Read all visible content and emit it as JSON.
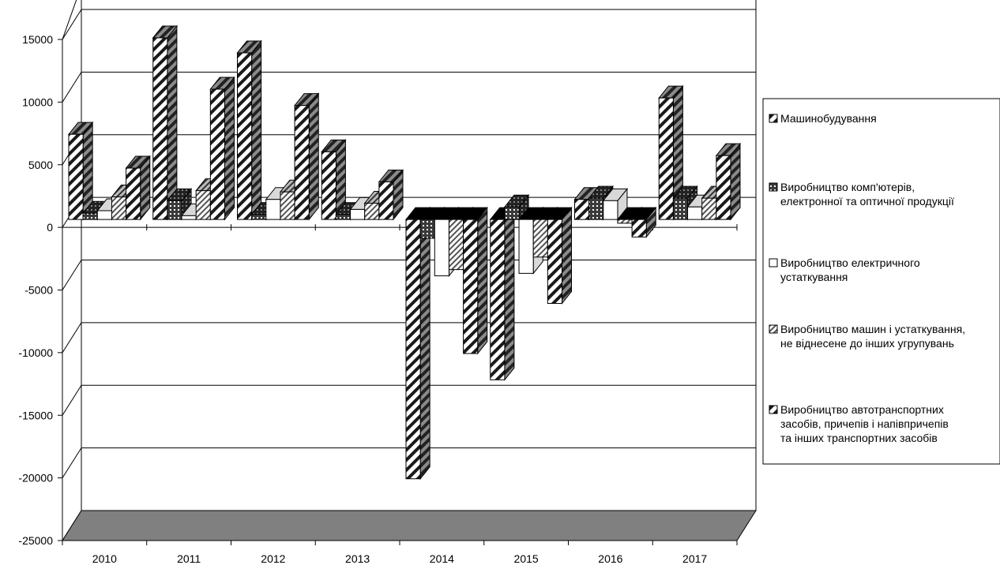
{
  "chart_data": {
    "type": "bar",
    "style": "3d-clustered",
    "title": "",
    "xlabel": "",
    "ylabel": "",
    "categories": [
      "2010",
      "2011",
      "2012",
      "2013",
      "2014",
      "2015",
      "2016",
      "2017"
    ],
    "ylim": [
      -25000,
      15000
    ],
    "yticks": [
      "15000",
      "10000",
      "5000",
      "0",
      "-5000",
      "-10000",
      "-15000",
      "-20000",
      "-25000"
    ],
    "grid": true,
    "legend_position": "right",
    "series": [
      {
        "name": "Машинобудування",
        "pattern": "diag-wide",
        "values": [
          6800,
          14500,
          13300,
          5400,
          -20700,
          -12800,
          1600,
          9700
        ]
      },
      {
        "name": "Виробництво комп'ютерів, електронної та оптичної продукції",
        "pattern": "grid",
        "values": [
          500,
          1500,
          400,
          400,
          -1500,
          1000,
          1700,
          1700
        ]
      },
      {
        "name": "Виробництво електричного устаткування",
        "pattern": "white",
        "values": [
          700,
          300,
          1600,
          800,
          -4500,
          -4300,
          1500,
          1000
        ]
      },
      {
        "name": "Виробництво машин і устаткування, не віднесене до інших угрупувань",
        "pattern": "diag-fine",
        "values": [
          1800,
          2300,
          2200,
          1300,
          -4000,
          -3000,
          -300,
          1700
        ]
      },
      {
        "name": "Виробництво автотранспортних засобів, причепів і напівпричепів та інших транспортних засобів",
        "pattern": "diag-wide",
        "values": [
          4100,
          10400,
          9100,
          3000,
          -10700,
          -6700,
          -1400,
          5100
        ]
      }
    ]
  }
}
